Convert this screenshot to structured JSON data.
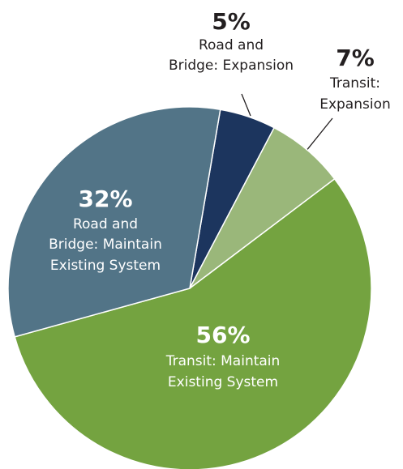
{
  "chart_data": {
    "type": "pie",
    "categories": [
      "Road and Bridge: Expansion",
      "Transit: Expansion",
      "Transit: Maintain Existing System",
      "Road and Bridge: Maintain Existing System"
    ],
    "values": [
      5,
      7,
      56,
      32
    ],
    "value_labels": [
      "5%",
      "7%",
      "56%",
      "32%"
    ],
    "colors": [
      "#1c355e",
      "#9ab77a",
      "#74a340",
      "#527487"
    ]
  }
}
